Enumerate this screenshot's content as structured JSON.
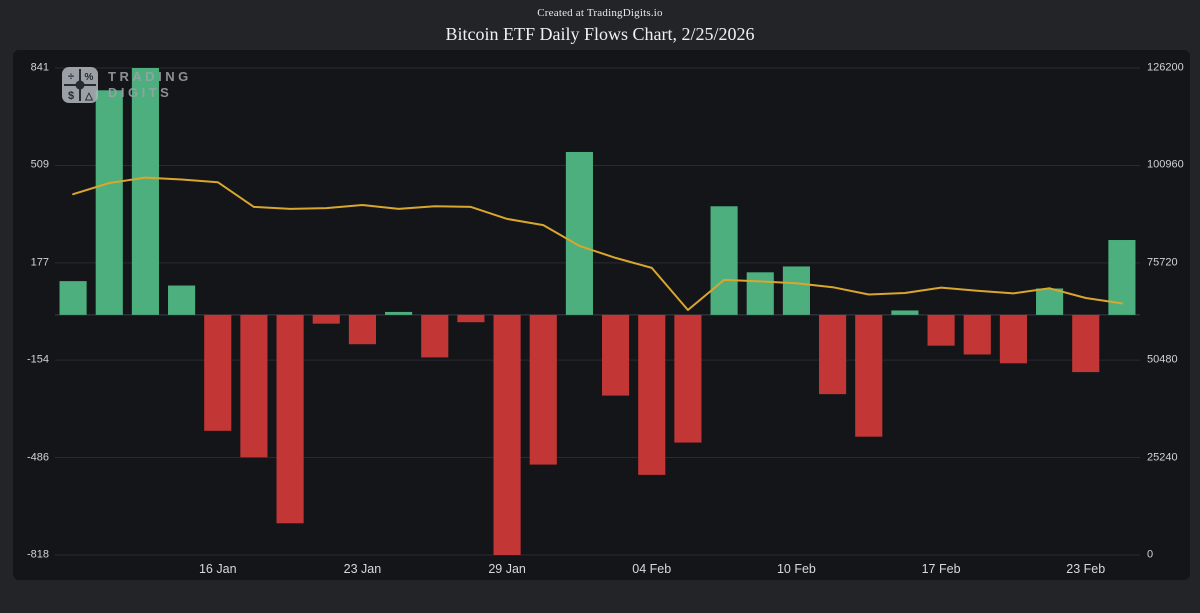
{
  "header": {
    "credit": "Created at TradingDigits.io",
    "title": "Bitcoin ETF Daily Flows Chart, 2/25/2026"
  },
  "watermark": {
    "line1": "TRADING",
    "line2": "DIGITS",
    "icon": "calculator-logo-icon",
    "glyphs": [
      "÷",
      "%",
      "$",
      "△"
    ]
  },
  "colors": {
    "background": "#232428",
    "panel": "#141519",
    "grid": "#282b31",
    "baseline": "#3a3e45",
    "axis_text": "#cfd3d8",
    "title_text": "#f0f1f3",
    "positive_bar": "#4daf7d",
    "negative_bar": "#c23736",
    "price_line": "#d9a62e",
    "watermark_text": "#9ba1a8"
  },
  "chart_data": {
    "type": "bar",
    "title": "Bitcoin ETF Daily Flows Chart, 2/25/2026",
    "xlabel": "",
    "ylabel": "",
    "grid": "horizontal",
    "legend": "none",
    "bar_count": 30,
    "series": [
      {
        "name": "daily-etf-net-flow",
        "type": "bar",
        "axis": "left",
        "values": [
          115,
          765,
          841,
          100,
          -395,
          -485,
          -710,
          -30,
          -100,
          10,
          -145,
          -25,
          -818,
          -510,
          555,
          -275,
          -545,
          -435,
          370,
          145,
          165,
          -270,
          -415,
          15,
          -105,
          -135,
          -165,
          90,
          -195,
          255
        ]
      },
      {
        "name": "btc-price",
        "type": "line",
        "axis": "right",
        "values": [
          93500,
          96400,
          97800,
          97300,
          96600,
          90200,
          89700,
          89900,
          90700,
          89700,
          90400,
          90200,
          87100,
          85500,
          80100,
          77000,
          74400,
          63500,
          71300,
          70900,
          70400,
          69400,
          67500,
          67900,
          69300,
          68500,
          67800,
          69100,
          66600,
          65200
        ]
      }
    ],
    "left_axis": {
      "ticks": [
        841,
        509,
        177,
        -154,
        -486,
        -818
      ],
      "range": [
        -818,
        841
      ]
    },
    "right_axis": {
      "ticks": [
        126200,
        100960,
        75720,
        50480,
        25240,
        0
      ],
      "range": [
        0,
        126200
      ]
    },
    "x_ticks": [
      {
        "label": "16 Jan",
        "bar": 5
      },
      {
        "label": "23 Jan",
        "bar": 9
      },
      {
        "label": "29 Jan",
        "bar": 13
      },
      {
        "label": "04 Feb",
        "bar": 17
      },
      {
        "label": "10 Feb",
        "bar": 21
      },
      {
        "label": "17 Feb",
        "bar": 25
      },
      {
        "label": "23 Feb",
        "bar": 29
      }
    ]
  }
}
